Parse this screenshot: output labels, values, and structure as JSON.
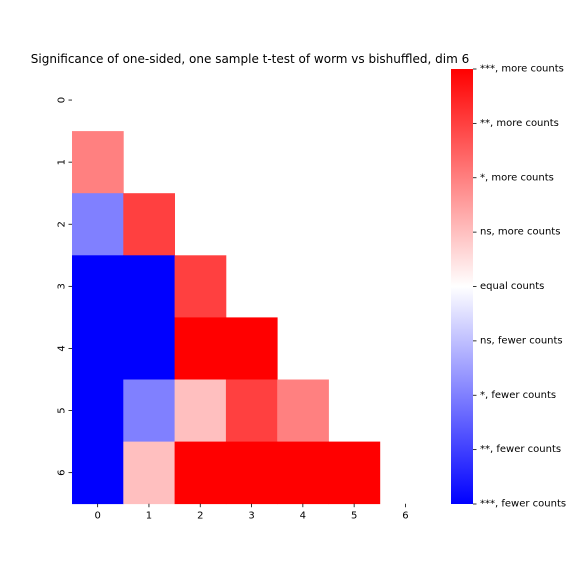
{
  "chart_data": {
    "type": "heatmap",
    "title": "Significance of one-sided, one sample t-test of worm vs bishuffled, dim 6",
    "xlabel": "",
    "ylabel": "",
    "x_categories": [
      "0",
      "1",
      "2",
      "3",
      "4",
      "5",
      "6"
    ],
    "y_categories": [
      "0",
      "1",
      "2",
      "3",
      "4",
      "5",
      "6"
    ],
    "value_scale": {
      "min": -4,
      "max": 4,
      "meaning": "signed significance level: positive = more counts, negative = fewer counts"
    },
    "cells": [
      {
        "row": 1,
        "col": 0,
        "value": 2
      },
      {
        "row": 2,
        "col": 0,
        "value": -2
      },
      {
        "row": 2,
        "col": 1,
        "value": 3
      },
      {
        "row": 3,
        "col": 0,
        "value": -4
      },
      {
        "row": 3,
        "col": 1,
        "value": -4
      },
      {
        "row": 3,
        "col": 2,
        "value": 3
      },
      {
        "row": 4,
        "col": 0,
        "value": -4
      },
      {
        "row": 4,
        "col": 1,
        "value": -4
      },
      {
        "row": 4,
        "col": 2,
        "value": 4
      },
      {
        "row": 4,
        "col": 3,
        "value": 4
      },
      {
        "row": 5,
        "col": 0,
        "value": -4
      },
      {
        "row": 5,
        "col": 1,
        "value": -2
      },
      {
        "row": 5,
        "col": 2,
        "value": 1
      },
      {
        "row": 5,
        "col": 3,
        "value": 3
      },
      {
        "row": 5,
        "col": 4,
        "value": 2
      },
      {
        "row": 6,
        "col": 0,
        "value": -4
      },
      {
        "row": 6,
        "col": 1,
        "value": 1
      },
      {
        "row": 6,
        "col": 2,
        "value": 4
      },
      {
        "row": 6,
        "col": 3,
        "value": 4
      },
      {
        "row": 6,
        "col": 4,
        "value": 4
      },
      {
        "row": 6,
        "col": 5,
        "value": 4
      }
    ],
    "colormap": "bwr",
    "colors": {
      "low": "#0000ff",
      "mid": "#ffffff",
      "high": "#ff0000"
    },
    "colorbar": {
      "position": "right",
      "ticks": [
        {
          "value": 4,
          "label": "***, more counts"
        },
        {
          "value": 3,
          "label": "**, more counts"
        },
        {
          "value": 2,
          "label": "*, more counts"
        },
        {
          "value": 1,
          "label": "ns, more counts"
        },
        {
          "value": 0,
          "label": "equal counts"
        },
        {
          "value": -1,
          "label": "ns, fewer counts"
        },
        {
          "value": -2,
          "label": "*, fewer counts"
        },
        {
          "value": -3,
          "label": "**, fewer counts"
        },
        {
          "value": -4,
          "label": "***, fewer counts"
        }
      ]
    },
    "grid": false
  }
}
